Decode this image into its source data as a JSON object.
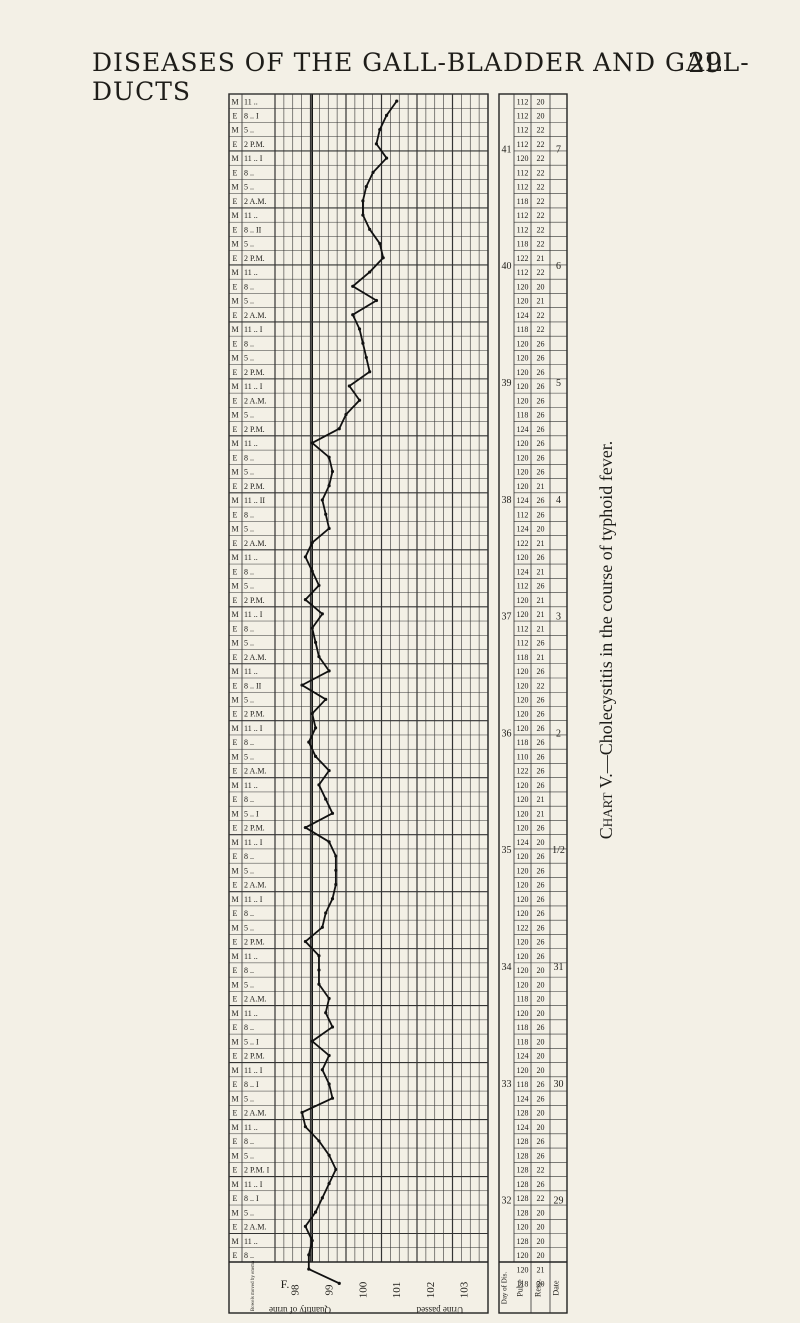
{
  "page": {
    "running_head": "DISEASES OF THE GALL-BLADDER AND GALL-DUCTS",
    "page_number": "29"
  },
  "caption": {
    "prefix": "Chart",
    "number": "V.",
    "text": "—Cholecystitis in the course of typhoid fever."
  },
  "axis_labels": {
    "temperature_unit": "F.",
    "temperature_ticks": [
      "103",
      "102",
      "101",
      "100",
      "99",
      "98"
    ],
    "bowels": "Bowels moved by enema",
    "urine": "Urine passed",
    "urine_volume": "Quantity of urine",
    "day": "Day of Dis.",
    "pulse": "Pulse",
    "resp": "Resp.",
    "date": "Date"
  },
  "rows": [
    {
      "time": "11 ..",
      "code": "M"
    },
    {
      "time": "8 .. I",
      "code": "E"
    },
    {
      "time": "5 ..",
      "code": "M"
    },
    {
      "time": "2 P.M.",
      "code": "E"
    },
    {
      "time": "11 .. I",
      "code": "M"
    },
    {
      "time": "8 ..",
      "code": "E"
    },
    {
      "time": "5 ..",
      "code": "M"
    },
    {
      "time": "2 A.M.",
      "code": "E"
    },
    {
      "time": "11 ..",
      "code": "M"
    },
    {
      "time": "8 .. II",
      "code": "E"
    },
    {
      "time": "5 ..",
      "code": "M"
    },
    {
      "time": "2 P.M.",
      "code": "E"
    },
    {
      "time": "11 ..",
      "code": "M"
    },
    {
      "time": "8 ..",
      "code": "E"
    },
    {
      "time": "5 ..",
      "code": "M"
    },
    {
      "time": "2 A.M.",
      "code": "E"
    },
    {
      "time": "11 .. I",
      "code": "M"
    },
    {
      "time": "8 ..",
      "code": "E"
    },
    {
      "time": "5 ..",
      "code": "M"
    },
    {
      "time": "2 P.M.",
      "code": "E"
    },
    {
      "time": "11 .. I",
      "code": "M"
    },
    {
      "time": "2 A.M.",
      "code": "E"
    },
    {
      "time": "5 ..",
      "code": "M"
    },
    {
      "time": "2 P.M.",
      "code": "E"
    },
    {
      "time": "11 ..",
      "code": "M"
    },
    {
      "time": "8 ..",
      "code": "E"
    },
    {
      "time": "5 ..",
      "code": "M"
    },
    {
      "time": "2 P.M.",
      "code": "E"
    },
    {
      "time": "11 .. II",
      "code": "M"
    },
    {
      "time": "8 ..",
      "code": "E"
    },
    {
      "time": "5 ..",
      "code": "M"
    },
    {
      "time": "2 A.M.",
      "code": "E"
    },
    {
      "time": "11 ..",
      "code": "M"
    },
    {
      "time": "8 ..",
      "code": "E"
    },
    {
      "time": "5 ..",
      "code": "M"
    },
    {
      "time": "2 P.M.",
      "code": "E"
    },
    {
      "time": "11 .. I",
      "code": "M"
    },
    {
      "time": "8 ..",
      "code": "E"
    },
    {
      "time": "5 ..",
      "code": "M"
    },
    {
      "time": "2 A.M.",
      "code": "E"
    },
    {
      "time": "11 ..",
      "code": "M"
    },
    {
      "time": "8 .. II",
      "code": "E"
    },
    {
      "time": "5 ..",
      "code": "M"
    },
    {
      "time": "2 P.M.",
      "code": "E"
    },
    {
      "time": "11 .. I",
      "code": "M"
    },
    {
      "time": "8 ..",
      "code": "E"
    },
    {
      "time": "5 ..",
      "code": "M"
    },
    {
      "time": "2 A.M.",
      "code": "E"
    },
    {
      "time": "11 ..",
      "code": "M"
    },
    {
      "time": "8 ..",
      "code": "E"
    },
    {
      "time": "5 .. I",
      "code": "M"
    },
    {
      "time": "2 P.M.",
      "code": "E"
    },
    {
      "time": "11 .. I",
      "code": "M"
    },
    {
      "time": "8 ..",
      "code": "E"
    },
    {
      "time": "5 ..",
      "code": "M"
    },
    {
      "time": "2 A.M.",
      "code": "E"
    },
    {
      "time": "11 .. I",
      "code": "M"
    },
    {
      "time": "8 ..",
      "code": "E"
    },
    {
      "time": "5 ..",
      "code": "M"
    },
    {
      "time": "2 P.M.",
      "code": "E"
    },
    {
      "time": "11 ..",
      "code": "M"
    },
    {
      "time": "8 ..",
      "code": "E"
    },
    {
      "time": "5 ..",
      "code": "M"
    },
    {
      "time": "2 A.M.",
      "code": "E"
    },
    {
      "time": "11 ..",
      "code": "M"
    },
    {
      "time": "8 ..",
      "code": "E"
    },
    {
      "time": "5 .. I",
      "code": "M"
    },
    {
      "time": "2 P.M.",
      "code": "E"
    },
    {
      "time": "11 .. I",
      "code": "M"
    },
    {
      "time": "8 .. I",
      "code": "E"
    },
    {
      "time": "5 ..",
      "code": "M"
    },
    {
      "time": "2 A.M.",
      "code": "E"
    },
    {
      "time": "11 ..",
      "code": "M"
    },
    {
      "time": "8 ..",
      "code": "E"
    },
    {
      "time": "5 ..",
      "code": "M"
    },
    {
      "time": "2 P.M. I",
      "code": "E"
    },
    {
      "time": "11 .. I",
      "code": "M"
    },
    {
      "time": "8 .. I",
      "code": "E"
    },
    {
      "time": "5 ..",
      "code": "M"
    },
    {
      "time": "2 A.M.",
      "code": "E"
    },
    {
      "time": "11 ..",
      "code": "M"
    },
    {
      "time": "8 ..",
      "code": "E"
    }
  ],
  "pulse": [
    112,
    112,
    112,
    112,
    120,
    112,
    112,
    118,
    112,
    112,
    118,
    122,
    112,
    120,
    120,
    124,
    118,
    120,
    120,
    120,
    120,
    120,
    118,
    124,
    120,
    120,
    120,
    120,
    124,
    112,
    124,
    122,
    120,
    124,
    112,
    120,
    120,
    112,
    112,
    118,
    120,
    120,
    120,
    120,
    120,
    118,
    110,
    122,
    120,
    120,
    120,
    120,
    124,
    120,
    120,
    120,
    120,
    120,
    122,
    120,
    120,
    120,
    120,
    118,
    120,
    118,
    118,
    124,
    120,
    118,
    124,
    128,
    124,
    128,
    128,
    128,
    128,
    128,
    128,
    120,
    128,
    120,
    120,
    118
  ],
  "respiration": [
    20,
    20,
    22,
    22,
    22,
    22,
    22,
    22,
    22,
    22,
    22,
    21,
    22,
    20,
    21,
    22,
    22,
    26,
    26,
    26,
    26,
    26,
    26,
    26,
    26,
    26,
    26,
    21,
    26,
    26,
    20,
    21,
    26,
    21,
    26,
    21,
    21,
    21,
    26,
    21,
    26,
    22,
    26,
    26,
    26,
    26,
    26,
    26,
    26,
    21,
    21,
    26,
    20,
    26,
    26,
    26,
    26,
    26,
    26,
    26,
    26,
    20,
    20,
    20,
    20,
    26,
    20,
    20,
    20,
    26,
    26,
    20,
    20,
    26,
    26,
    22,
    26,
    22,
    20,
    20,
    20,
    20,
    21,
    20
  ],
  "day_of_disease": [
    "41",
    "40",
    "39",
    "38",
    "37",
    "36",
    "35",
    "34",
    "33",
    "32"
  ],
  "dates": [
    "7",
    "6",
    "5",
    "4",
    "3",
    "2",
    "1/2",
    "31",
    "30",
    "29"
  ],
  "temperature": [
    100.9,
    100.6,
    100.4,
    100.3,
    100.6,
    100.2,
    100.0,
    99.9,
    99.9,
    100.1,
    100.4,
    100.5,
    100.1,
    99.6,
    100.3,
    99.6,
    99.8,
    99.9,
    100.0,
    100.1,
    99.5,
    99.8,
    99.4,
    99.2,
    98.4,
    98.9,
    99.0,
    98.9,
    98.7,
    98.8,
    98.9,
    98.4,
    98.2,
    98.4,
    98.6,
    98.2,
    98.7,
    98.4,
    98.5,
    98.6,
    98.9,
    98.1,
    98.8,
    98.4,
    98.5,
    98.3,
    98.5,
    98.9,
    98.6,
    98.8,
    99.0,
    98.2,
    98.9,
    99.1,
    99.1,
    99.1,
    99.0,
    98.8,
    98.7,
    98.2,
    98.6,
    98.6,
    98.6,
    98.9,
    98.8,
    99.0,
    98.4,
    98.9,
    98.7,
    98.9,
    99.0,
    98.1,
    98.2,
    98.6,
    98.9,
    99.1,
    98.9,
    98.7,
    98.5,
    98.2,
    98.4,
    98.3,
    98.3,
    99.2
  ]
}
